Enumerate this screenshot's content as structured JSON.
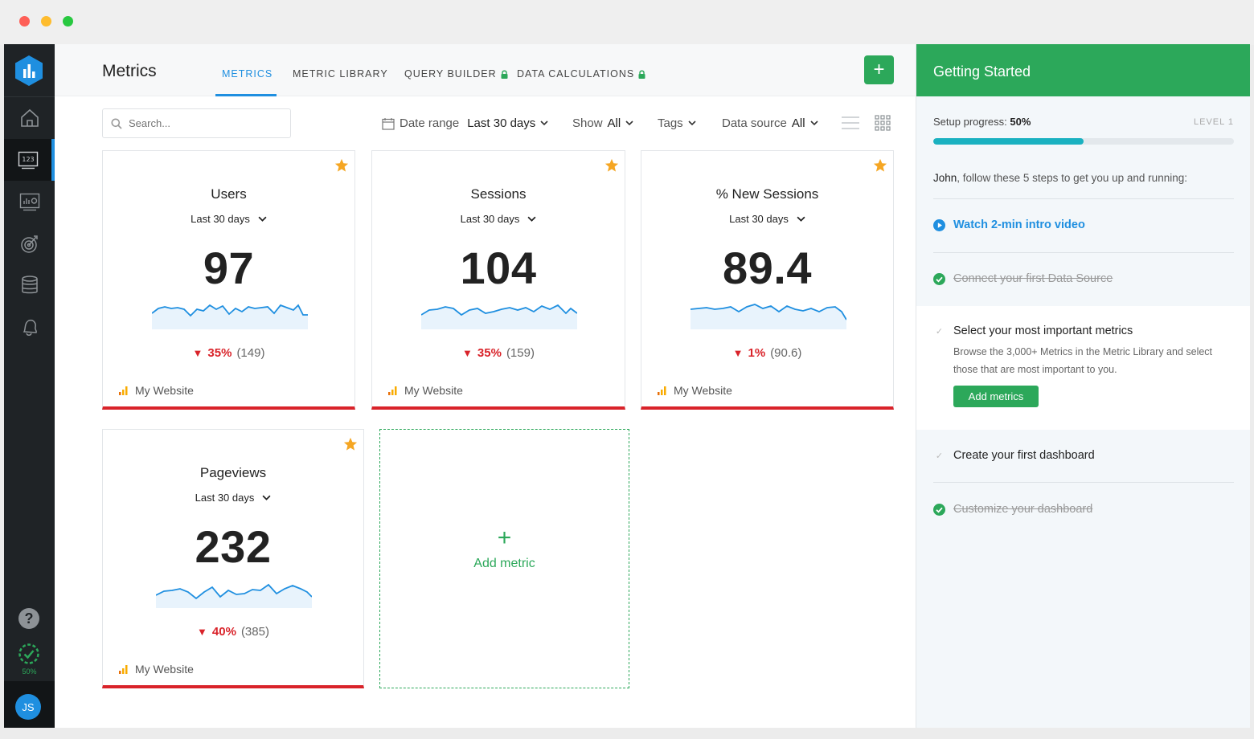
{
  "app": {
    "page_title": "Metrics",
    "colors": {
      "accent_blue": "#1f8fe0",
      "accent_green": "#2ca85a",
      "negative_red": "#d9232a",
      "sidebar": "#1f2326"
    }
  },
  "tabs": [
    {
      "label": "METRICS",
      "active": true,
      "locked": false
    },
    {
      "label": "METRIC LIBRARY",
      "active": false,
      "locked": false
    },
    {
      "label": "QUERY BUILDER",
      "active": false,
      "locked": true
    },
    {
      "label": "DATA CALCULATIONS",
      "active": false,
      "locked": true
    }
  ],
  "sidebar": {
    "items": [
      "home-icon",
      "metrics-123-icon",
      "dashboard-icon",
      "goals-target-icon",
      "database-icon",
      "alerts-bell-icon"
    ],
    "active_item": "metrics-123-icon",
    "progress_label": "50%",
    "progress": 0.5,
    "avatar_initials": "JS"
  },
  "toolbar": {
    "search_placeholder": "Search...",
    "date_range_label": "Date range",
    "date_range_value": "Last 30 days",
    "show_label": "Show",
    "show_value": "All",
    "tags_label": "Tags",
    "data_source_label": "Data source",
    "data_source_value": "All"
  },
  "metrics": [
    {
      "title": "Users",
      "range": "Last 30 days",
      "value": "97",
      "change": "35%",
      "previous": "(149)",
      "source": "My Website",
      "starred": true
    },
    {
      "title": "Sessions",
      "range": "Last 30 days",
      "value": "104",
      "change": "35%",
      "previous": "(159)",
      "source": "My Website",
      "starred": true
    },
    {
      "title": "% New Sessions",
      "range": "Last 30 days",
      "value": "89.4",
      "change": "1%",
      "previous": "(90.6)",
      "source": "My Website",
      "starred": true
    },
    {
      "title": "Pageviews",
      "range": "Last 30 days",
      "value": "232",
      "change": "40%",
      "previous": "(385)",
      "source": "My Website",
      "starred": true
    }
  ],
  "add_metric_label": "Add metric",
  "getting_started": {
    "title": "Getting Started",
    "progress_label": "Setup progress:",
    "progress_value": "50%",
    "progress": 0.5,
    "level": "LEVEL 1",
    "intro_name": "John",
    "intro_text": ", follow these 5 steps to get you up and running:",
    "steps": [
      {
        "label": "Watch 2-min intro video",
        "state": "video"
      },
      {
        "label": "Connect your first Data Source",
        "state": "done"
      },
      {
        "label": "Select your most important metrics",
        "state": "active",
        "description": "Browse the 3,000+ Metrics in the Metric Library and select those that are most important to you.",
        "button": "Add metrics"
      },
      {
        "label": "Create your first dashboard",
        "state": "todo"
      },
      {
        "label": "Customize your dashboard",
        "state": "done"
      }
    ]
  }
}
